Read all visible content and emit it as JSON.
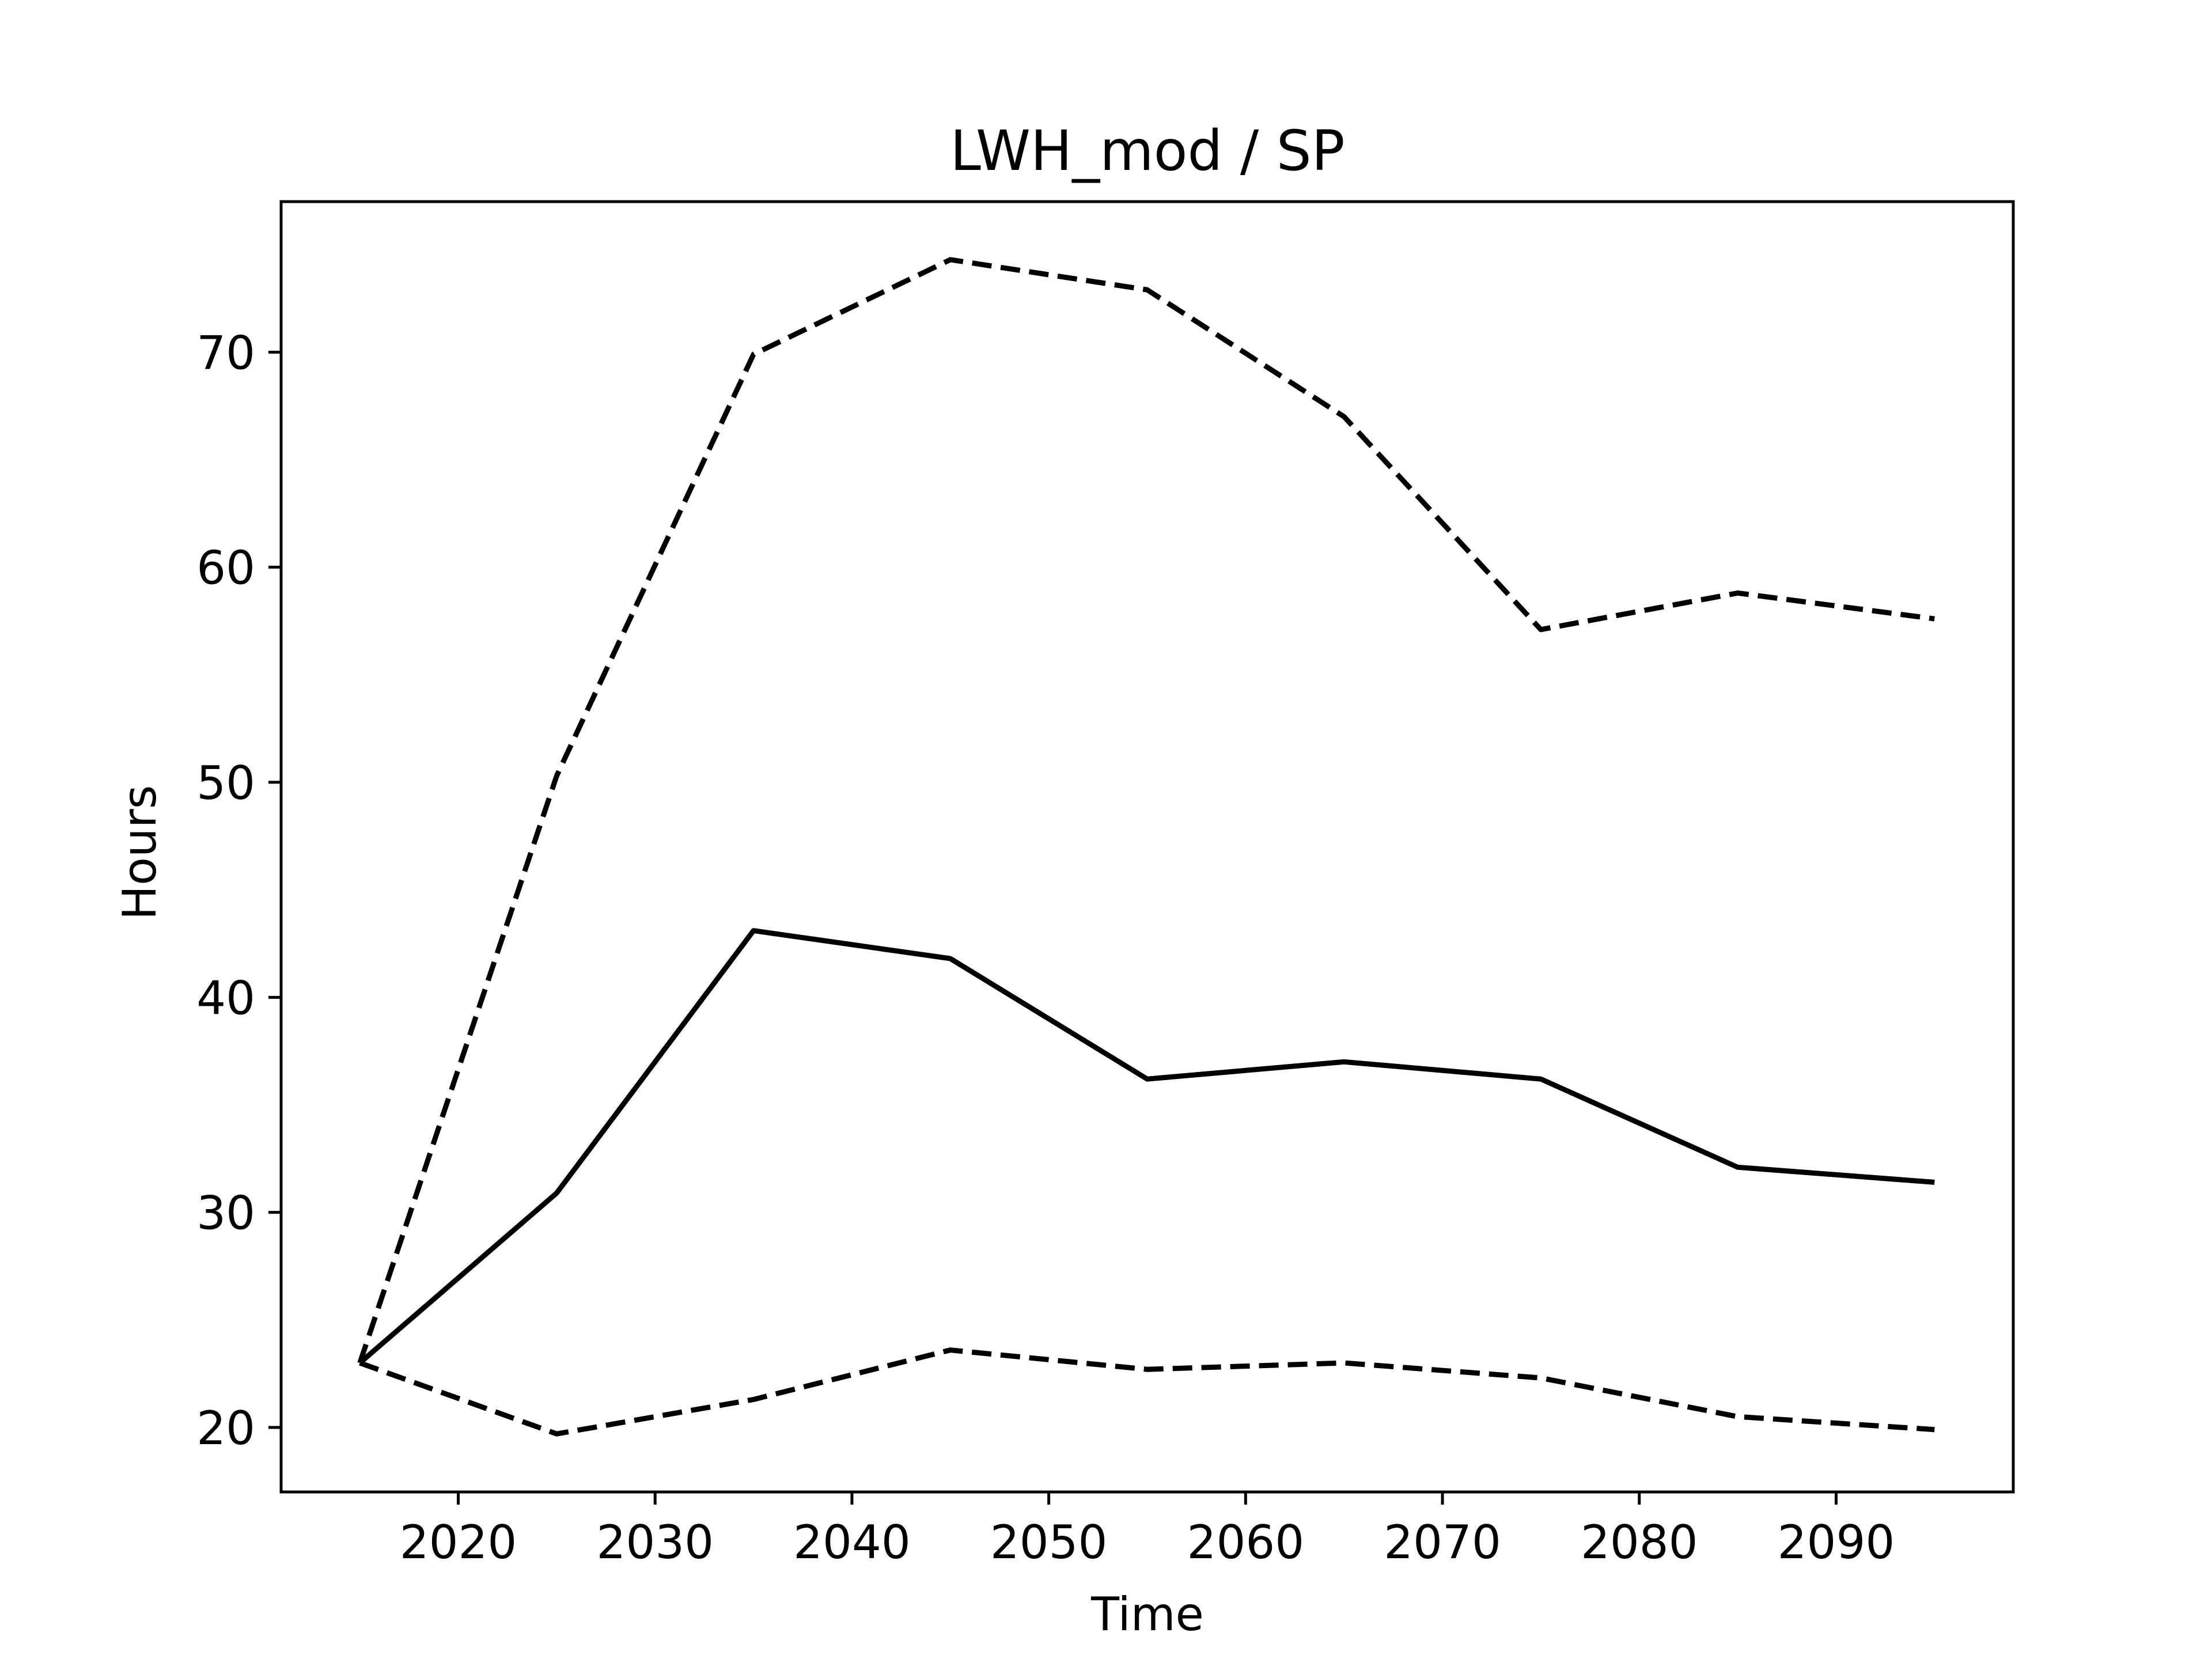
{
  "chart_data": {
    "type": "line",
    "title": "LWH_mod / SP",
    "xlabel": "Time",
    "ylabel": "Hours",
    "xlim": [
      2011,
      2099
    ],
    "ylim": [
      17,
      77
    ],
    "xticks": [
      2020,
      2030,
      2040,
      2050,
      2060,
      2070,
      2080,
      2090
    ],
    "yticks": [
      20,
      30,
      40,
      50,
      60,
      70
    ],
    "grid": false,
    "legend": "none",
    "x": [
      2015,
      2025,
      2035,
      2045,
      2055,
      2065,
      2075,
      2085,
      2095
    ],
    "series": [
      {
        "style": "dashed",
        "color": "#000000",
        "values": [
          23.0,
          50.3,
          69.9,
          74.3,
          72.9,
          67.0,
          57.1,
          58.8,
          57.6
        ]
      },
      {
        "style": "solid",
        "color": "#000000",
        "values": [
          23.0,
          30.9,
          43.1,
          41.8,
          36.2,
          37.0,
          36.2,
          32.1,
          31.4
        ]
      },
      {
        "style": "dashed",
        "color": "#000000",
        "values": [
          23.0,
          19.7,
          21.3,
          23.6,
          22.7,
          23.0,
          22.3,
          20.5,
          19.9
        ]
      }
    ]
  }
}
